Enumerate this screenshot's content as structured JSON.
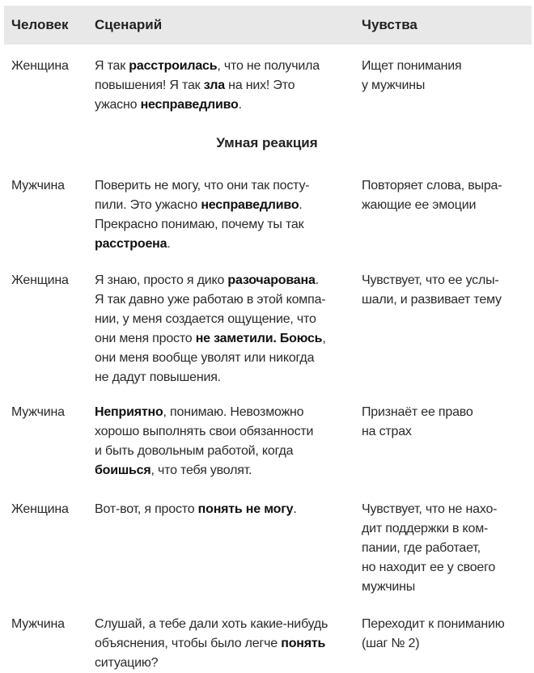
{
  "header": {
    "person": "Человек",
    "scenario": "Сценарий",
    "feelings": "Чувства"
  },
  "section_title": "Умная реакция",
  "rows": [
    {
      "person": "Женщина",
      "scenario": [
        [
          {
            "t": "Я так "
          },
          {
            "t": "расстроилась",
            "b": true
          },
          {
            "t": ", что не получила"
          }
        ],
        [
          {
            "t": "повышения! Я так "
          },
          {
            "t": "зла",
            "b": true
          },
          {
            "t": " на них! Это"
          }
        ],
        [
          {
            "t": "ужасно "
          },
          {
            "t": "несправедливо",
            "b": true
          },
          {
            "t": "."
          }
        ]
      ],
      "feelings": [
        "Ищет понимания",
        "у мужчины"
      ]
    },
    {
      "person": "Мужчина",
      "scenario": [
        [
          {
            "t": "Поверить не могу, что они так посту-"
          }
        ],
        [
          {
            "t": "пили. Это ужасно "
          },
          {
            "t": "несправедливо",
            "b": true
          },
          {
            "t": "."
          }
        ],
        [
          {
            "t": "Прекрасно понимаю, почему ты так"
          }
        ],
        [
          {
            "t": "расстроена",
            "b": true
          },
          {
            "t": "."
          }
        ]
      ],
      "feelings": [
        "Повторяет слова, выра-",
        "жающие ее эмоции"
      ]
    },
    {
      "person": "Женщина",
      "scenario": [
        [
          {
            "t": "Я знаю, просто я дико "
          },
          {
            "t": "разочарована",
            "b": true
          },
          {
            "t": "."
          }
        ],
        [
          {
            "t": "Я так давно уже работаю в этой компа-"
          }
        ],
        [
          {
            "t": "нии, у меня создается ощущение, что"
          }
        ],
        [
          {
            "t": "они меня просто "
          },
          {
            "t": "не заметили. Боюсь",
            "b": true
          },
          {
            "t": ","
          }
        ],
        [
          {
            "t": "они меня вообще уволят или никогда"
          }
        ],
        [
          {
            "t": "не дадут повышения."
          }
        ]
      ],
      "feelings": [
        "Чувствует, что ее услы-",
        "шали, и развивает тему"
      ]
    },
    {
      "person": "Мужчина",
      "scenario": [
        [
          {
            "t": "Неприятно",
            "b": true
          },
          {
            "t": ", понимаю. Невозможно"
          }
        ],
        [
          {
            "t": "хорошо выполнять свои обязанности"
          }
        ],
        [
          {
            "t": "и быть довольным работой, когда"
          }
        ],
        [
          {
            "t": "боишься",
            "b": true
          },
          {
            "t": ", что тебя уволят."
          }
        ]
      ],
      "feelings": [
        "Признаёт ее право",
        "на страх"
      ]
    },
    {
      "person": "Женщина",
      "scenario": [
        [
          {
            "t": "Вот-вот, я просто "
          },
          {
            "t": "понять не могу",
            "b": true
          },
          {
            "t": "."
          }
        ]
      ],
      "feelings": [
        "Чувствует, что не нахо-",
        "дит поддержки в ком-",
        "пании, где работает,",
        "но находит ее у своего",
        "мужчины"
      ]
    },
    {
      "person": "Мужчина",
      "scenario": [
        [
          {
            "t": "Слушай, а тебе дали хоть какие-нибудь"
          }
        ],
        [
          {
            "t": "объяснения, чтобы было легче "
          },
          {
            "t": "понять",
            "b": true
          }
        ],
        [
          {
            "t": "ситуацию?"
          }
        ]
      ],
      "feelings": [
        "Переходит к пониманию",
        "(шаг № 2)"
      ]
    }
  ]
}
